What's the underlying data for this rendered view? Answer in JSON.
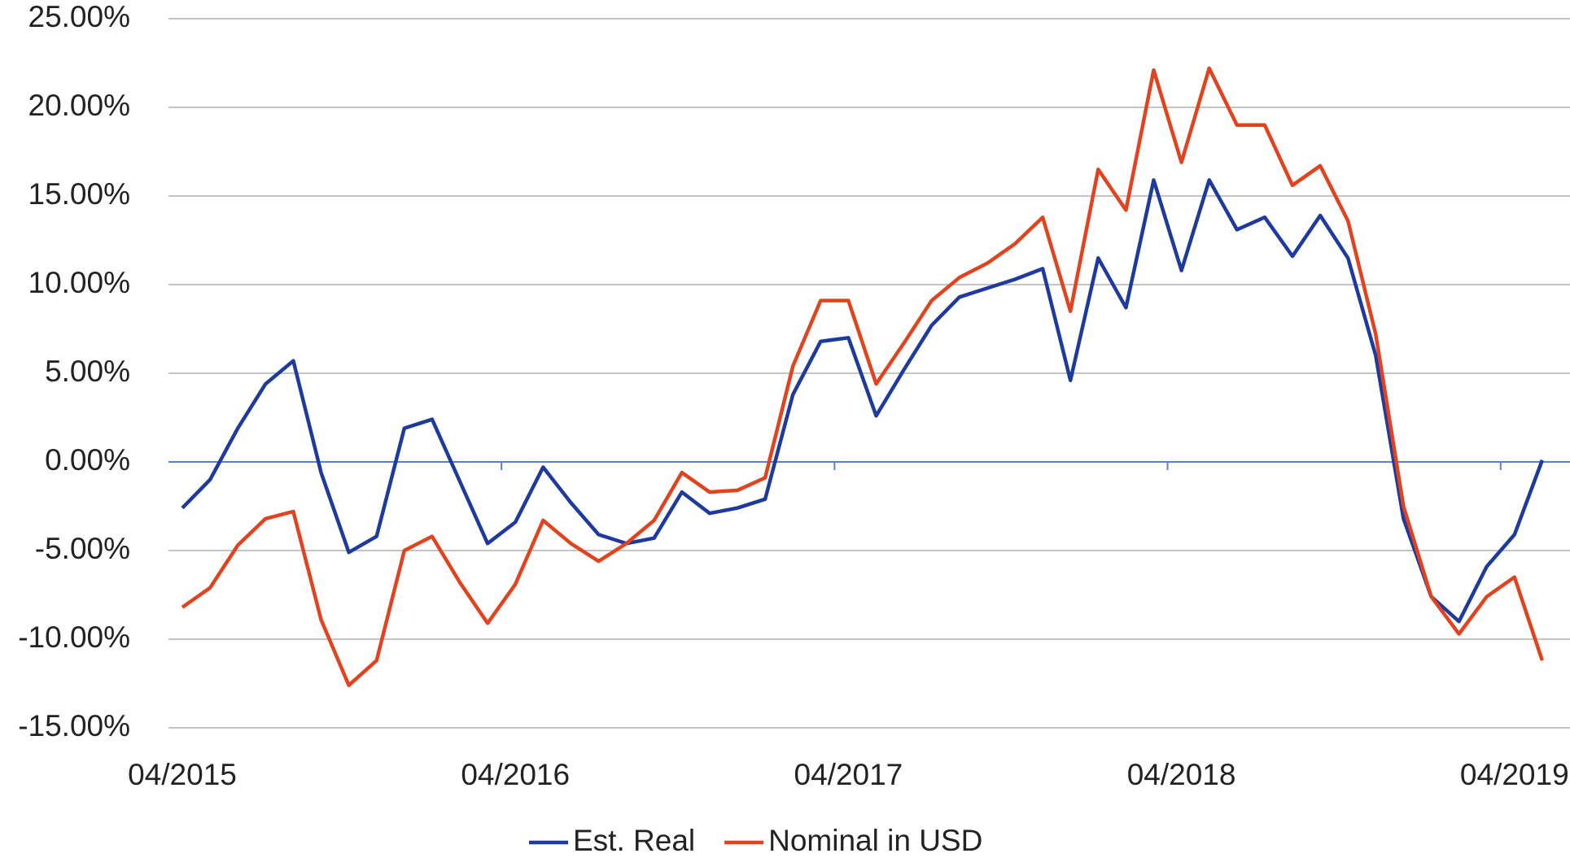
{
  "chart_data": {
    "type": "line",
    "categories": [
      "04/2015",
      null,
      null,
      null,
      null,
      null,
      null,
      null,
      null,
      null,
      null,
      null,
      "04/2016",
      null,
      null,
      null,
      null,
      null,
      null,
      null,
      null,
      null,
      null,
      null,
      "04/2017",
      null,
      null,
      null,
      null,
      null,
      null,
      null,
      null,
      null,
      null,
      null,
      "04/2018",
      null,
      null,
      null,
      null,
      null,
      null,
      null,
      null,
      null,
      null,
      null,
      "04/2019",
      null
    ],
    "series": [
      {
        "name": "Est. Real",
        "color": "#1f3a9e",
        "values": [
          -2.6,
          -1.0,
          1.9,
          4.4,
          5.7,
          -0.6,
          -5.1,
          -4.2,
          1.9,
          2.4,
          -1.1,
          -4.6,
          -3.4,
          -0.3,
          -2.3,
          -4.1,
          -4.6,
          -4.3,
          -1.7,
          -2.9,
          -2.6,
          -2.1,
          3.8,
          6.8,
          7.0,
          2.6,
          5.2,
          7.7,
          9.3,
          9.8,
          10.3,
          10.9,
          4.6,
          11.5,
          8.7,
          15.9,
          10.8,
          15.9,
          13.1,
          13.8,
          11.6,
          13.9,
          11.5,
          6.0,
          -3.2,
          -7.6,
          -9.0,
          -5.9,
          -4.1,
          0.1
        ]
      },
      {
        "name": "Nominal in USD",
        "color": "#e2431e",
        "values": [
          -8.2,
          -7.1,
          -4.7,
          -3.2,
          -2.8,
          -8.9,
          -12.6,
          -11.2,
          -5.0,
          -4.2,
          -6.8,
          -9.1,
          -6.9,
          -3.3,
          -4.6,
          -5.6,
          -4.6,
          -3.3,
          -0.6,
          -1.7,
          -1.6,
          -0.9,
          5.4,
          9.1,
          9.1,
          4.4,
          6.7,
          9.1,
          10.4,
          11.2,
          12.3,
          13.8,
          8.5,
          16.5,
          14.2,
          22.1,
          16.9,
          22.2,
          19.0,
          19.0,
          15.6,
          16.7,
          13.6,
          7.2,
          -2.5,
          -7.6,
          -9.7,
          -7.6,
          -6.5,
          -11.2
        ]
      }
    ],
    "ylim": [
      -15,
      25
    ],
    "yticks": [
      {
        "value": -15,
        "label": "-15.00%"
      },
      {
        "value": -10,
        "label": "-10.00%"
      },
      {
        "value": -5,
        "label": "-5.00%"
      },
      {
        "value": 0,
        "label": "0.00%"
      },
      {
        "value": 5,
        "label": "5.00%"
      },
      {
        "value": 10,
        "label": "10.00%"
      },
      {
        "value": 15,
        "label": "15.00%"
      },
      {
        "value": 20,
        "label": "20.00%"
      },
      {
        "value": 25,
        "label": "25.00%"
      }
    ],
    "grid": true
  }
}
